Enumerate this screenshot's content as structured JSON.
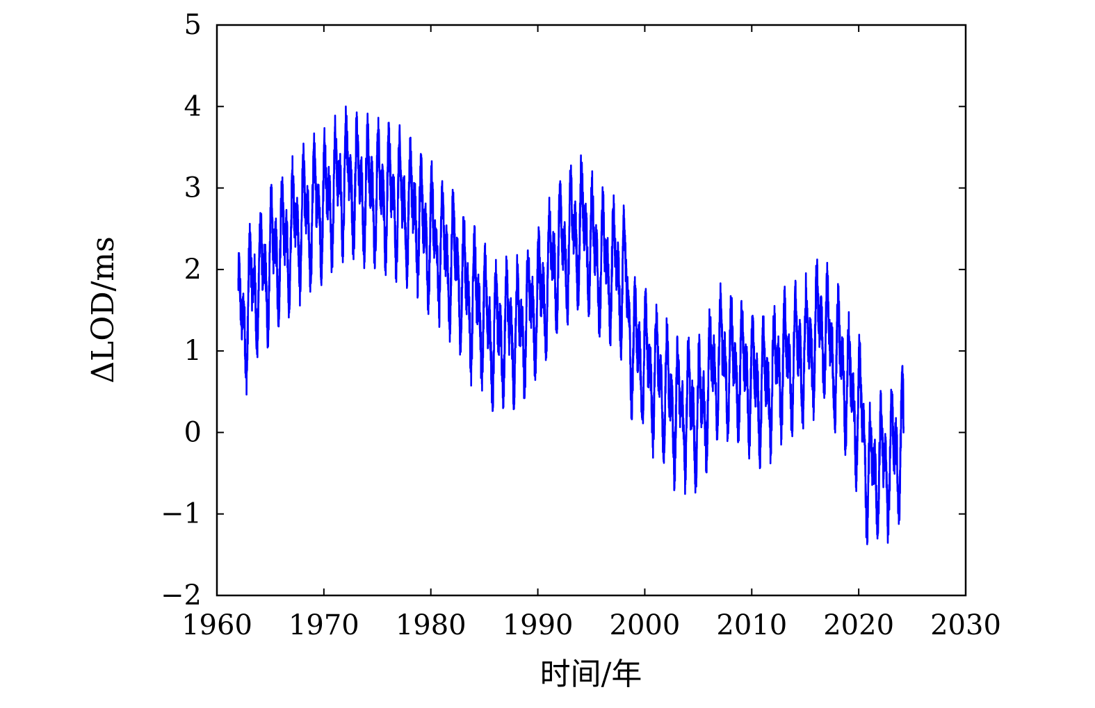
{
  "chart_data": {
    "type": "line",
    "title": "",
    "xlabel": "时间/年",
    "ylabel": "ΔLOD/ms",
    "xlim": [
      1960,
      2030
    ],
    "ylim": [
      -2,
      5
    ],
    "xticks": [
      1960,
      1970,
      1980,
      1990,
      2000,
      2010,
      2020,
      2030
    ],
    "yticks": [
      -2,
      -1,
      0,
      1,
      2,
      3,
      4,
      5
    ],
    "xtick_labels": [
      "1960",
      "1970",
      "1980",
      "1990",
      "2000",
      "2010",
      "2020",
      "2030"
    ],
    "ytick_labels": [
      "−2",
      "−1",
      "0",
      "1",
      "2",
      "3",
      "4",
      "5"
    ],
    "grid": false,
    "legend": "none",
    "series": [
      {
        "color": "#0000ff",
        "x_start": 1962.0,
        "x_end": 2024.2,
        "seasonal_amplitude": 0.8,
        "smooth_trend": [
          {
            "x": 1962.0,
            "y": 1.3
          },
          {
            "x": 1964.0,
            "y": 1.9
          },
          {
            "x": 1966.0,
            "y": 2.3
          },
          {
            "x": 1968.0,
            "y": 2.6
          },
          {
            "x": 1970.0,
            "y": 2.85
          },
          {
            "x": 1972.0,
            "y": 3.1
          },
          {
            "x": 1974.0,
            "y": 3.0
          },
          {
            "x": 1976.0,
            "y": 2.9
          },
          {
            "x": 1978.0,
            "y": 2.75
          },
          {
            "x": 1980.0,
            "y": 2.4
          },
          {
            "x": 1982.0,
            "y": 2.1
          },
          {
            "x": 1984.0,
            "y": 1.6
          },
          {
            "x": 1986.0,
            "y": 1.2
          },
          {
            "x": 1988.0,
            "y": 1.25
          },
          {
            "x": 1990.0,
            "y": 1.6
          },
          {
            "x": 1992.0,
            "y": 2.2
          },
          {
            "x": 1994.0,
            "y": 2.5
          },
          {
            "x": 1996.0,
            "y": 2.1
          },
          {
            "x": 1998.0,
            "y": 1.9
          },
          {
            "x": 1999.0,
            "y": 1.0
          },
          {
            "x": 2001.0,
            "y": 0.7
          },
          {
            "x": 2003.0,
            "y": 0.3
          },
          {
            "x": 2005.0,
            "y": 0.25
          },
          {
            "x": 2007.0,
            "y": 0.9
          },
          {
            "x": 2009.0,
            "y": 0.75
          },
          {
            "x": 2011.0,
            "y": 0.55
          },
          {
            "x": 2013.0,
            "y": 0.85
          },
          {
            "x": 2015.0,
            "y": 1.0
          },
          {
            "x": 2016.5,
            "y": 1.3
          },
          {
            "x": 2018.0,
            "y": 0.9
          },
          {
            "x": 2020.0,
            "y": 0.3
          },
          {
            "x": 2021.0,
            "y": -0.5
          },
          {
            "x": 2022.5,
            "y": -0.4
          },
          {
            "x": 2024.2,
            "y": -0.1
          }
        ]
      }
    ]
  }
}
